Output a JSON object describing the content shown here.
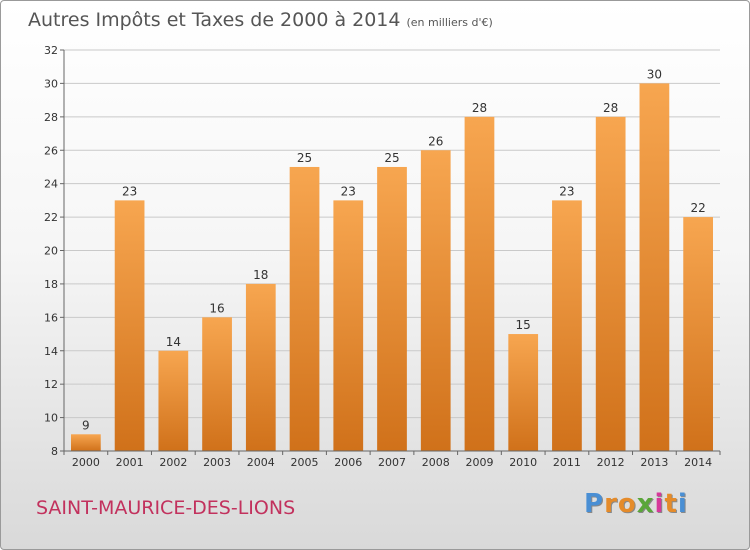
{
  "title": "Autres Impôts et Taxes de 2000 à 2014",
  "unit_label": "(en milliers d'€)",
  "commune": "SAINT-MAURICE-DES-LIONS",
  "logo": {
    "letters": [
      "P",
      "r",
      "o",
      "x",
      "i",
      "t",
      "i"
    ],
    "colors": [
      "#4a8fd4",
      "#e58b2a",
      "#e58b2a",
      "#5aa63a",
      "#d6389a",
      "#e58b2a",
      "#4a8fd4"
    ]
  },
  "chart_data": {
    "type": "bar",
    "categories": [
      "2000",
      "2001",
      "2002",
      "2003",
      "2004",
      "2005",
      "2006",
      "2007",
      "2008",
      "2009",
      "2010",
      "2011",
      "2012",
      "2013",
      "2014"
    ],
    "values": [
      9,
      23,
      14,
      16,
      18,
      25,
      23,
      25,
      26,
      28,
      15,
      23,
      28,
      30,
      22
    ],
    "data_labels": [
      "9",
      "23",
      "14",
      "16",
      "18",
      "25",
      "23",
      "25",
      "26",
      "28",
      "15",
      "23",
      "28",
      "30",
      "22"
    ],
    "ylim": [
      8,
      32
    ],
    "yticks": [
      "8",
      "10",
      "12",
      "14",
      "16",
      "18",
      "20",
      "22",
      "24",
      "26",
      "28",
      "30",
      "32"
    ],
    "grid": true,
    "bar_color": "#f0953a"
  }
}
